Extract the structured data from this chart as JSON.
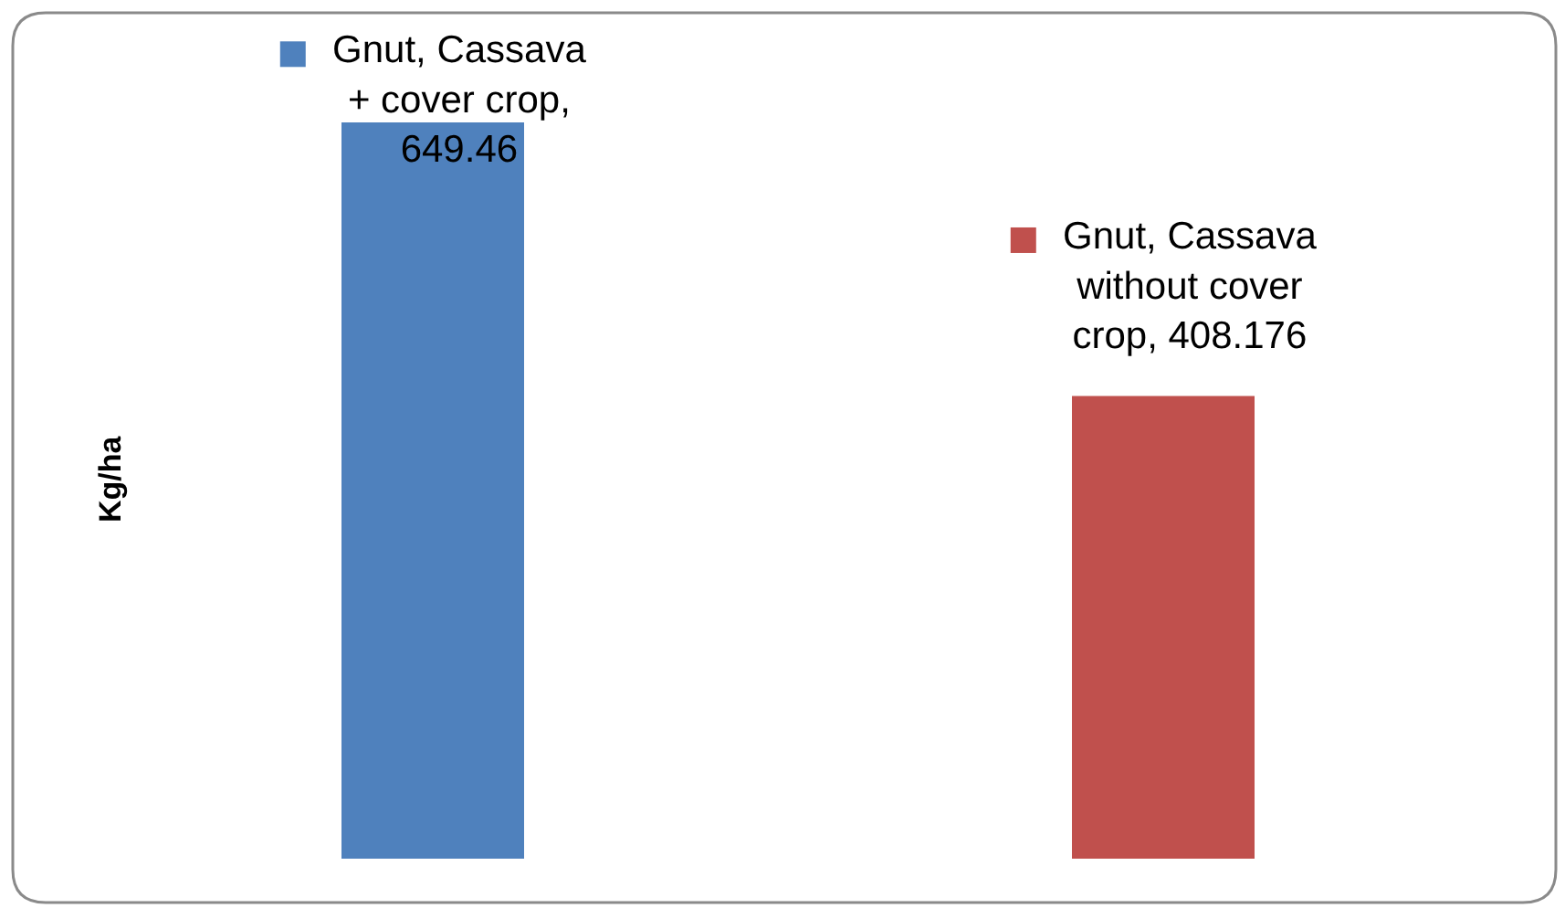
{
  "chart_data": {
    "type": "bar",
    "ylabel": "Kg/ha",
    "categories": [
      null,
      null
    ],
    "values": [
      649.46,
      408.176
    ],
    "colors": [
      "#4f81bd",
      "#c0504d"
    ],
    "value_labels": [
      "Gnut, Cassava + cover crop, 649.46",
      "Gnut, Cassava without cover crop, 408.176"
    ]
  }
}
